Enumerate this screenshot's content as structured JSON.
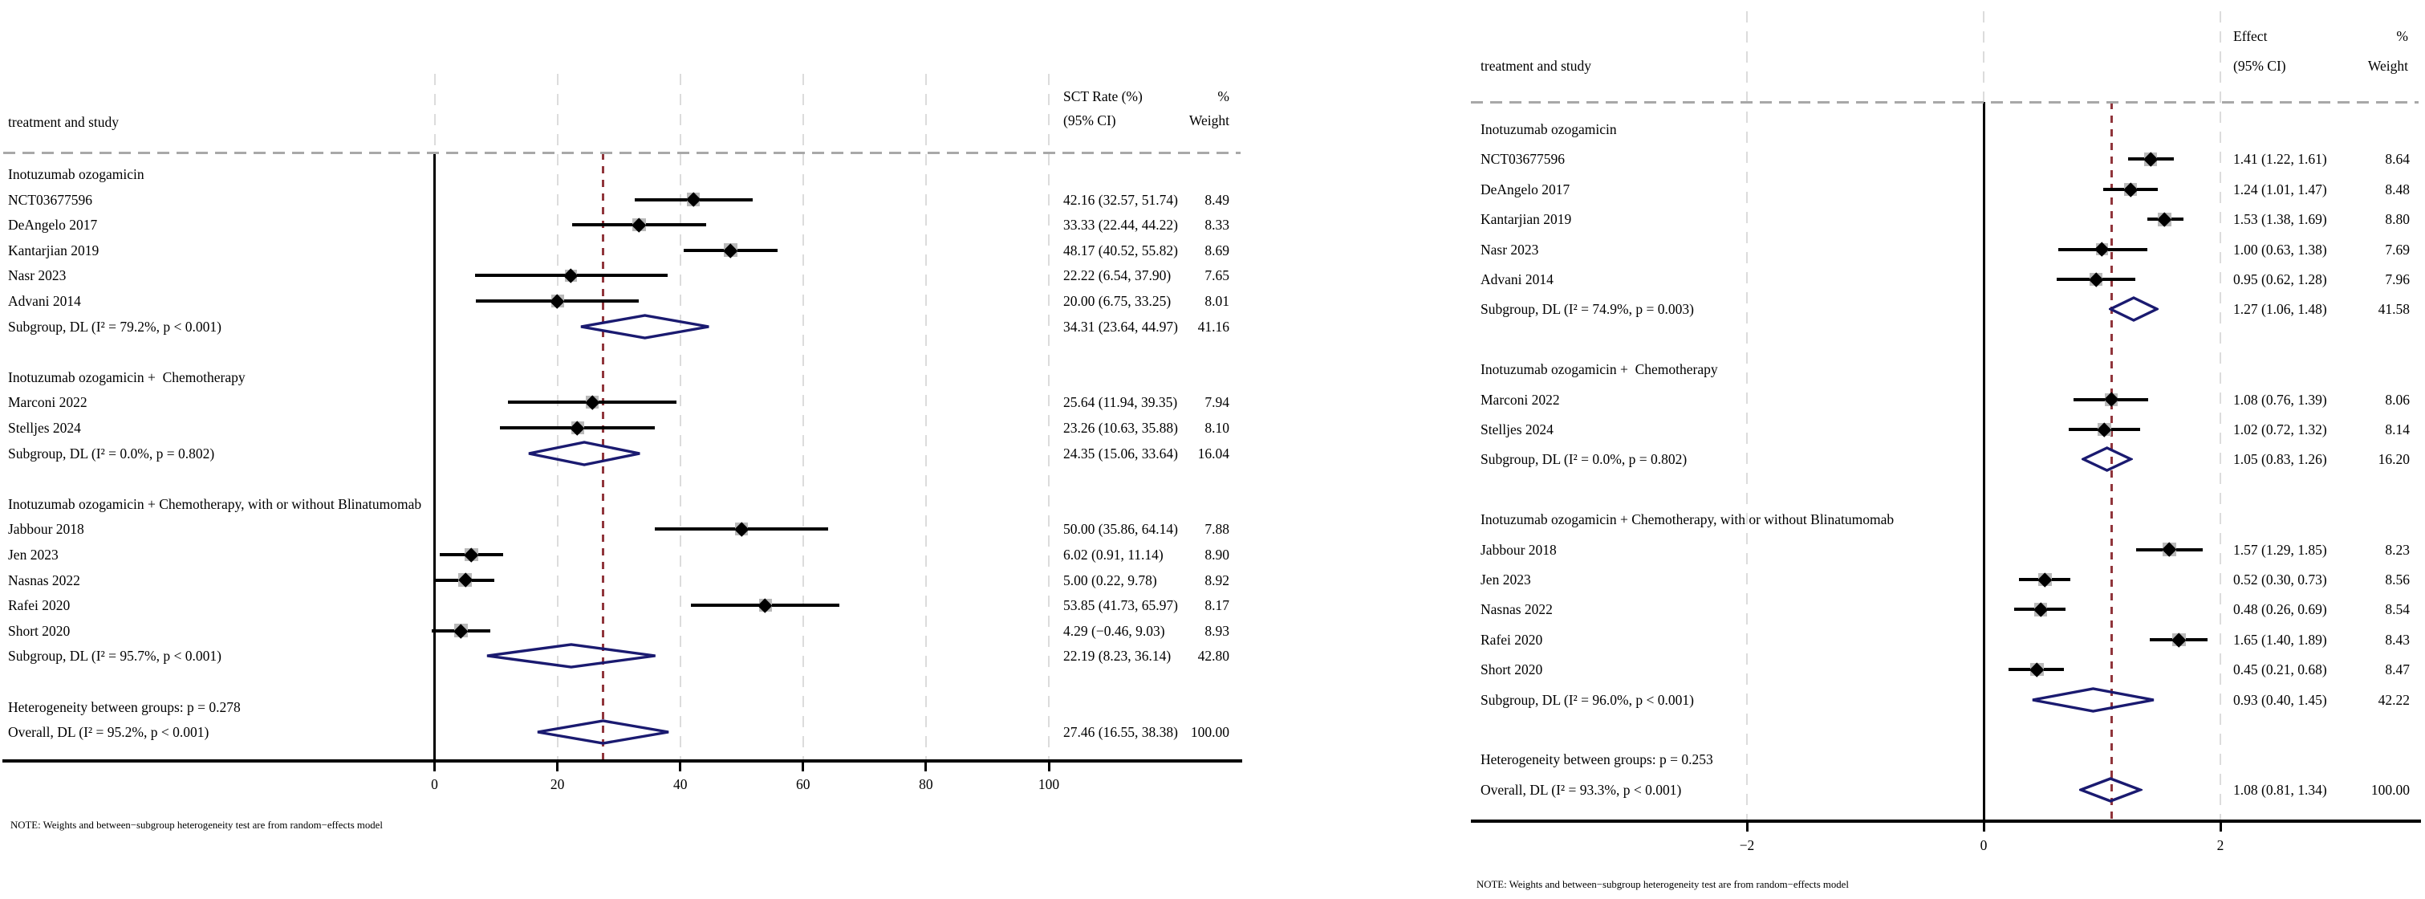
{
  "colors": {
    "navy": "#1a1a70",
    "maroon": "#90353b",
    "box_gray": "#b9b9b9",
    "grid_gray": "#dcdcdc"
  },
  "chart_data": [
    {
      "type": "forest",
      "columns": {
        "col1": "treatment and study",
        "col2_line1": "SCT Rate (%)",
        "col2_line2": "(95% CI)",
        "col3_line1": "%",
        "col3_line2": "Weight"
      },
      "axis": {
        "ticks": [
          0,
          20,
          40,
          60,
          80,
          100
        ],
        "tick_labels": [
          "0",
          "20",
          "40",
          "60",
          "80",
          "100"
        ],
        "zero_line": 0,
        "xlim": [
          -70.7,
          131.2
        ]
      },
      "overall_line": 27.46,
      "note": "NOTE: Weights and between−subgroup heterogeneity test are from random−effects model",
      "rows": [
        {
          "type": "group",
          "label": "Inotuzumab ozogamicin"
        },
        {
          "type": "study",
          "label": "NCT03677596",
          "est": 42.16,
          "lo": 32.57,
          "hi": 51.74,
          "ci_text": "42.16 (32.57, 51.74)",
          "weight": "8.49"
        },
        {
          "type": "study",
          "label": "DeAngelo 2017",
          "est": 33.33,
          "lo": 22.44,
          "hi": 44.22,
          "ci_text": "33.33 (22.44, 44.22)",
          "weight": "8.33"
        },
        {
          "type": "study",
          "label": "Kantarjian 2019",
          "est": 48.17,
          "lo": 40.52,
          "hi": 55.82,
          "ci_text": "48.17 (40.52, 55.82)",
          "weight": "8.69"
        },
        {
          "type": "study",
          "label": "Nasr 2023",
          "est": 22.22,
          "lo": 6.54,
          "hi": 37.9,
          "ci_text": "22.22 (6.54, 37.90)",
          "weight": "7.65"
        },
        {
          "type": "study",
          "label": "Advani 2014",
          "est": 20.0,
          "lo": 6.75,
          "hi": 33.25,
          "ci_text": "20.00 (6.75, 33.25)",
          "weight": "8.01"
        },
        {
          "type": "subgroup",
          "label": "Subgroup, DL (I² = 79.2%, p < 0.001)",
          "est": 34.31,
          "lo": 23.64,
          "hi": 44.97,
          "ci_text": "34.31 (23.64, 44.97)",
          "weight": "41.16"
        },
        {
          "type": "spacer"
        },
        {
          "type": "group",
          "label": "Inotuzumab ozogamicin +  Chemotherapy"
        },
        {
          "type": "study",
          "label": "Marconi 2022",
          "est": 25.64,
          "lo": 11.94,
          "hi": 39.35,
          "ci_text": "25.64 (11.94, 39.35)",
          "weight": "7.94"
        },
        {
          "type": "study",
          "label": "Stelljes 2024",
          "est": 23.26,
          "lo": 10.63,
          "hi": 35.88,
          "ci_text": "23.26 (10.63, 35.88)",
          "weight": "8.10"
        },
        {
          "type": "subgroup",
          "label": "Subgroup, DL (I² = 0.0%, p = 0.802)",
          "est": 24.35,
          "lo": 15.06,
          "hi": 33.64,
          "ci_text": "24.35 (15.06, 33.64)",
          "weight": "16.04"
        },
        {
          "type": "spacer"
        },
        {
          "type": "group",
          "label": "Inotuzumab ozogamicin + Chemotherapy, with or without Blinatumomab"
        },
        {
          "type": "study",
          "label": "Jabbour 2018",
          "est": 50.0,
          "lo": 35.86,
          "hi": 64.14,
          "ci_text": "50.00 (35.86, 64.14)",
          "weight": "7.88"
        },
        {
          "type": "study",
          "label": "Jen 2023",
          "est": 6.02,
          "lo": 0.91,
          "hi": 11.14,
          "ci_text": "6.02 (0.91, 11.14)",
          "weight": "8.90"
        },
        {
          "type": "study",
          "label": "Nasnas 2022",
          "est": 5.0,
          "lo": 0.22,
          "hi": 9.78,
          "ci_text": "5.00 (0.22, 9.78)",
          "weight": "8.92"
        },
        {
          "type": "study",
          "label": "Rafei 2020",
          "est": 53.85,
          "lo": 41.73,
          "hi": 65.97,
          "ci_text": "53.85 (41.73, 65.97)",
          "weight": "8.17"
        },
        {
          "type": "study",
          "label": "Short 2020",
          "est": 4.29,
          "lo": -0.46,
          "hi": 9.03,
          "ci_text": "4.29 (−0.46, 9.03)",
          "weight": "8.93"
        },
        {
          "type": "subgroup",
          "label": "Subgroup, DL (I² = 95.7%, p < 0.001)",
          "est": 22.19,
          "lo": 8.23,
          "hi": 36.14,
          "ci_text": "22.19 (8.23, 36.14)",
          "weight": "42.80"
        },
        {
          "type": "spacer"
        },
        {
          "type": "hetero",
          "label": "Heterogeneity between groups: p = 0.278"
        },
        {
          "type": "overall",
          "label": "Overall, DL (I² = 95.2%, p < 0.001)",
          "est": 27.46,
          "lo": 16.55,
          "hi": 38.38,
          "ci_text": "27.46 (16.55, 38.38)",
          "weight": "100.00"
        }
      ]
    },
    {
      "type": "forest",
      "columns": {
        "col1": "treatment and study",
        "col2_line1": "Effect",
        "col2_line2": "(95% CI)",
        "col3_line1": "%",
        "col3_line2": "Weight"
      },
      "axis": {
        "ticks": [
          -2,
          0,
          2
        ],
        "tick_labels": [
          "−2",
          "0",
          "2"
        ],
        "zero_line": 0,
        "xlim": [
          -4.33,
          3.69
        ]
      },
      "overall_line": 1.08,
      "note": "NOTE: Weights and between−subgroup heterogeneity test are from random−effects model",
      "rows": [
        {
          "type": "group",
          "label": "Inotuzumab ozogamicin"
        },
        {
          "type": "study",
          "label": "NCT03677596",
          "est": 1.41,
          "lo": 1.22,
          "hi": 1.61,
          "ci_text": "1.41 (1.22, 1.61)",
          "weight": "8.64"
        },
        {
          "type": "study",
          "label": "DeAngelo 2017",
          "est": 1.24,
          "lo": 1.01,
          "hi": 1.47,
          "ci_text": "1.24 (1.01, 1.47)",
          "weight": "8.48"
        },
        {
          "type": "study",
          "label": "Kantarjian 2019",
          "est": 1.53,
          "lo": 1.38,
          "hi": 1.69,
          "ci_text": "1.53 (1.38, 1.69)",
          "weight": "8.80"
        },
        {
          "type": "study",
          "label": "Nasr 2023",
          "est": 1.0,
          "lo": 0.63,
          "hi": 1.38,
          "ci_text": "1.00 (0.63, 1.38)",
          "weight": "7.69"
        },
        {
          "type": "study",
          "label": "Advani 2014",
          "est": 0.95,
          "lo": 0.62,
          "hi": 1.28,
          "ci_text": "0.95 (0.62, 1.28)",
          "weight": "7.96"
        },
        {
          "type": "subgroup",
          "label": "Subgroup, DL (I² = 74.9%, p = 0.003)",
          "est": 1.27,
          "lo": 1.06,
          "hi": 1.48,
          "ci_text": "1.27 (1.06, 1.48)",
          "weight": "41.58"
        },
        {
          "type": "spacer"
        },
        {
          "type": "group",
          "label": "Inotuzumab ozogamicin +  Chemotherapy"
        },
        {
          "type": "study",
          "label": "Marconi 2022",
          "est": 1.08,
          "lo": 0.76,
          "hi": 1.39,
          "ci_text": "1.08 (0.76, 1.39)",
          "weight": "8.06"
        },
        {
          "type": "study",
          "label": "Stelljes 2024",
          "est": 1.02,
          "lo": 0.72,
          "hi": 1.32,
          "ci_text": "1.02 (0.72, 1.32)",
          "weight": "8.14"
        },
        {
          "type": "subgroup",
          "label": "Subgroup, DL (I² = 0.0%, p = 0.802)",
          "est": 1.05,
          "lo": 0.83,
          "hi": 1.26,
          "ci_text": "1.05 (0.83, 1.26)",
          "weight": "16.20"
        },
        {
          "type": "spacer"
        },
        {
          "type": "group",
          "label": "Inotuzumab ozogamicin + Chemotherapy, with or without Blinatumomab"
        },
        {
          "type": "study",
          "label": "Jabbour 2018",
          "est": 1.57,
          "lo": 1.29,
          "hi": 1.85,
          "ci_text": "1.57 (1.29, 1.85)",
          "weight": "8.23"
        },
        {
          "type": "study",
          "label": "Jen 2023",
          "est": 0.52,
          "lo": 0.3,
          "hi": 0.73,
          "ci_text": "0.52 (0.30, 0.73)",
          "weight": "8.56"
        },
        {
          "type": "study",
          "label": "Nasnas 2022",
          "est": 0.48,
          "lo": 0.26,
          "hi": 0.69,
          "ci_text": "0.48 (0.26, 0.69)",
          "weight": "8.54"
        },
        {
          "type": "study",
          "label": "Rafei 2020",
          "est": 1.65,
          "lo": 1.4,
          "hi": 1.89,
          "ci_text": "1.65 (1.40, 1.89)",
          "weight": "8.43"
        },
        {
          "type": "study",
          "label": "Short 2020",
          "est": 0.45,
          "lo": 0.21,
          "hi": 0.68,
          "ci_text": "0.45 (0.21, 0.68)",
          "weight": "8.47"
        },
        {
          "type": "subgroup",
          "label": "Subgroup, DL (I² = 96.0%, p < 0.001)",
          "est": 0.93,
          "lo": 0.4,
          "hi": 1.45,
          "ci_text": "0.93 (0.40, 1.45)",
          "weight": "42.22"
        },
        {
          "type": "spacer"
        },
        {
          "type": "hetero",
          "label": "Heterogeneity between groups: p = 0.253"
        },
        {
          "type": "overall",
          "label": "Overall, DL (I² = 93.3%, p < 0.001)",
          "est": 1.08,
          "lo": 0.81,
          "hi": 1.34,
          "ci_text": "1.08 (0.81, 1.34)",
          "weight": "100.00"
        }
      ]
    }
  ]
}
